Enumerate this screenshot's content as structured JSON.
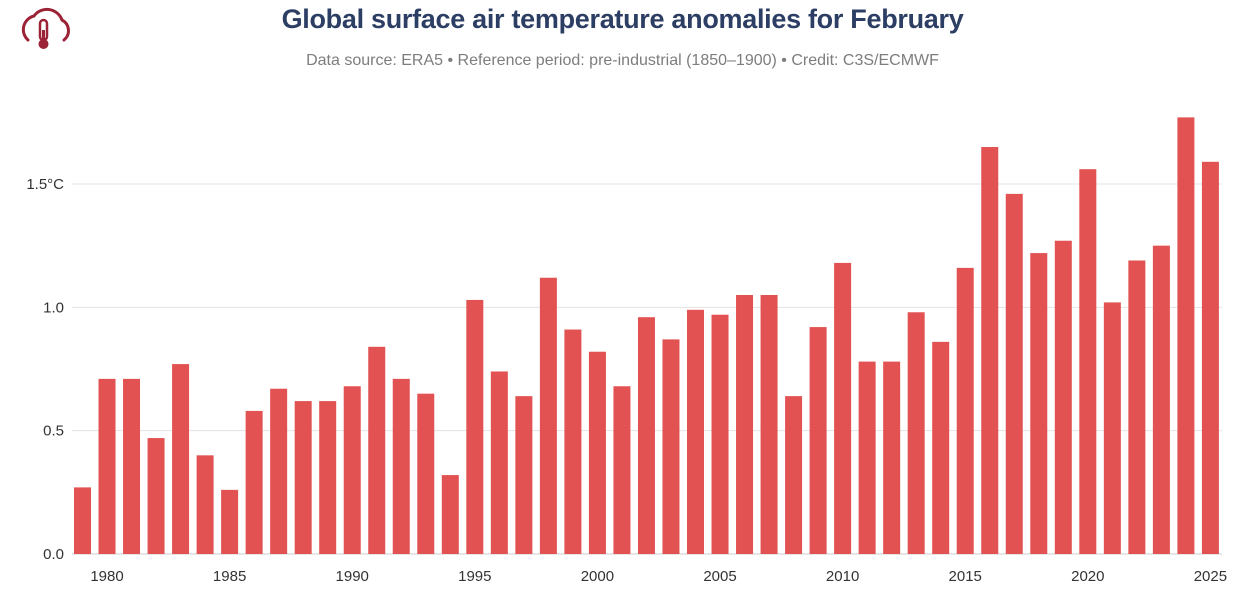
{
  "header": {
    "title": "Global surface air temperature anomalies for February",
    "subtitle": "Data source: ERA5 • Reference period: pre-industrial (1850–1900) • Credit: C3S/ECMWF"
  },
  "logo": {
    "icon": "cloud-thermometer-icon",
    "color": "#9b2335"
  },
  "chart_data": {
    "type": "bar",
    "title": "Global surface air temperature anomalies for February",
    "subtitle": "Data source: ERA5 • Reference period: pre-industrial (1850–1900) • Credit: C3S/ECMWF",
    "xlabel": "",
    "ylabel": "",
    "ylim": [
      0,
      1.8
    ],
    "grid": true,
    "legend": "none",
    "bar_color": "#e35252",
    "y_ticks": [
      {
        "value": 0.0,
        "label": "0.0"
      },
      {
        "value": 0.5,
        "label": "0.5"
      },
      {
        "value": 1.0,
        "label": "1.0"
      },
      {
        "value": 1.5,
        "label": "1.5°C"
      }
    ],
    "x_ticks": [
      {
        "value": 1980,
        "label": "1980"
      },
      {
        "value": 1985,
        "label": "1985"
      },
      {
        "value": 1990,
        "label": "1990"
      },
      {
        "value": 1995,
        "label": "1995"
      },
      {
        "value": 2000,
        "label": "2000"
      },
      {
        "value": 2005,
        "label": "2005"
      },
      {
        "value": 2010,
        "label": "2010"
      },
      {
        "value": 2015,
        "label": "2015"
      },
      {
        "value": 2020,
        "label": "2020"
      },
      {
        "value": 2025,
        "label": "2025"
      }
    ],
    "categories": [
      1979,
      1980,
      1981,
      1982,
      1983,
      1984,
      1985,
      1986,
      1987,
      1988,
      1989,
      1990,
      1991,
      1992,
      1993,
      1994,
      1995,
      1996,
      1997,
      1998,
      1999,
      2000,
      2001,
      2002,
      2003,
      2004,
      2005,
      2006,
      2007,
      2008,
      2009,
      2010,
      2011,
      2012,
      2013,
      2014,
      2015,
      2016,
      2017,
      2018,
      2019,
      2020,
      2021,
      2022,
      2023,
      2024,
      2025
    ],
    "values": [
      0.27,
      0.71,
      0.71,
      0.47,
      0.77,
      0.4,
      0.26,
      0.58,
      0.67,
      0.62,
      0.62,
      0.68,
      0.84,
      0.71,
      0.65,
      0.32,
      1.03,
      0.74,
      0.64,
      1.12,
      0.91,
      0.82,
      0.68,
      0.96,
      0.87,
      0.99,
      0.97,
      1.05,
      1.05,
      0.64,
      0.92,
      1.18,
      0.78,
      0.78,
      0.98,
      0.86,
      1.16,
      1.65,
      1.46,
      1.22,
      1.27,
      1.56,
      1.02,
      1.19,
      1.25,
      1.77,
      1.59
    ]
  }
}
